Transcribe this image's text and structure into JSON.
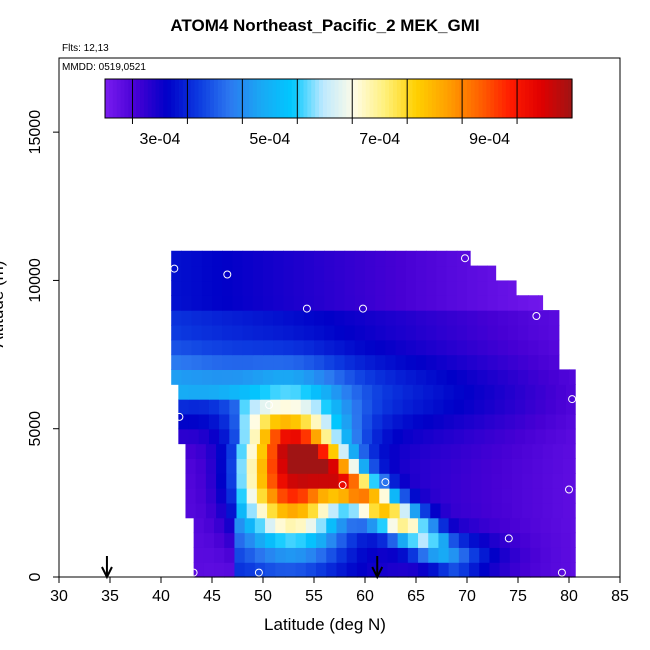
{
  "header": {
    "title": "ATOM4 Northeast_Pacific_2 MEK_GMI",
    "flights": "Flts: 12,13",
    "dates": "MMDD: 0519,0521"
  },
  "chart_data": {
    "type": "heatmap",
    "title": "ATOM4 Northeast_Pacific_2 MEK_GMI",
    "xlabel": "Latitude (deg N)",
    "ylabel": "Altitude (m)",
    "xlim": [
      30,
      85
    ],
    "ylim": [
      0,
      17500
    ],
    "x_ticks": [
      "30",
      "35",
      "40",
      "45",
      "50",
      "55",
      "60",
      "65",
      "70",
      "75",
      "80",
      "85"
    ],
    "y_ticks": [
      "0",
      "5000",
      "10000",
      "15000"
    ],
    "grid": false,
    "legend": "colorbar-top",
    "colorbar": {
      "range": [
        0.0002,
        0.00105
      ],
      "tick_values": [
        0.0003,
        0.0005,
        0.0007,
        0.0009
      ],
      "tick_labels": [
        "3e-04",
        "5e-04",
        "7e-04",
        "9e-04"
      ],
      "colors": [
        "#7a1cf0",
        "#4600d4",
        "#0000c8",
        "#0c3ae0",
        "#2c78f0",
        "#1aa8f4",
        "#00c8ff",
        "#bde9ff",
        "#fffce6",
        "#fff07a",
        "#ffd000",
        "#ffa000",
        "#ff6400",
        "#ff1c00",
        "#e00000",
        "#a01414"
      ]
    },
    "surface_arrows_lat": [
      34.7,
      61.2
    ],
    "observations": [
      {
        "lat": 41.3,
        "alt": 10400
      },
      {
        "lat": 46.5,
        "alt": 10200
      },
      {
        "lat": 54.3,
        "alt": 9050
      },
      {
        "lat": 59.8,
        "alt": 9050
      },
      {
        "lat": 69.8,
        "alt": 10750
      },
      {
        "lat": 76.8,
        "alt": 8800
      },
      {
        "lat": 80.3,
        "alt": 6000
      },
      {
        "lat": 41.8,
        "alt": 5400
      },
      {
        "lat": 50.6,
        "alt": 5800
      },
      {
        "lat": 57.8,
        "alt": 3100
      },
      {
        "lat": 62.0,
        "alt": 3200
      },
      {
        "lat": 80.0,
        "alt": 2950
      },
      {
        "lat": 74.1,
        "alt": 1300
      },
      {
        "lat": 43.2,
        "alt": 150
      },
      {
        "lat": 49.6,
        "alt": 150
      },
      {
        "lat": 79.3,
        "alt": 150
      }
    ]
  }
}
